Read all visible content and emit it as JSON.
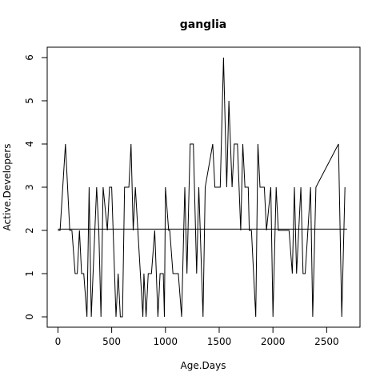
{
  "chart_data": {
    "type": "line",
    "title": "ganglia",
    "xlabel": "Age.Days",
    "ylabel": "Active.Developers",
    "xlim": [
      -100,
      2810
    ],
    "ylim": [
      -0.24,
      6.24
    ],
    "xticks": [
      0,
      500,
      1000,
      1500,
      2000,
      2500
    ],
    "yticks": [
      0,
      1,
      2,
      3,
      4,
      5,
      6
    ],
    "series": [
      {
        "x": [
          0,
          20,
          70,
          110,
          130,
          160,
          180,
          200,
          220,
          240,
          270,
          290,
          310,
          360,
          380,
          400,
          420,
          460,
          480,
          500,
          540,
          560,
          580,
          600,
          620,
          660,
          680,
          700,
          720,
          790,
          800,
          820,
          840,
          870,
          900,
          930,
          950,
          980,
          990,
          1000,
          1030,
          1040,
          1070,
          1120,
          1150,
          1180,
          1200,
          1230,
          1260,
          1290,
          1310,
          1350,
          1370,
          1440,
          1460,
          1510,
          1540,
          1570,
          1590,
          1620,
          1640,
          1670,
          1700,
          1720,
          1740,
          1770,
          1780,
          1800,
          1840,
          1860,
          1880,
          1920,
          1940,
          1980,
          2000,
          2030,
          2050,
          2060,
          2080,
          2100,
          2150,
          2180,
          2200,
          2220,
          2260,
          2280,
          2300,
          2350,
          2370,
          2400,
          2610,
          2640,
          2670
        ],
        "values": [
          2,
          2,
          4,
          2,
          2,
          1,
          1,
          2,
          1,
          1,
          0,
          3,
          0,
          3,
          2,
          0,
          3,
          2,
          3,
          3,
          0,
          1,
          0,
          0,
          3,
          3,
          4,
          2,
          3,
          0,
          1,
          0,
          1,
          1,
          2,
          0,
          1,
          1,
          0,
          3,
          2,
          2,
          1,
          1,
          0,
          3,
          1,
          4,
          4,
          1,
          3,
          0,
          3,
          4,
          3,
          3,
          6,
          3,
          5,
          3,
          4,
          4,
          2,
          4,
          3,
          3,
          2,
          2,
          0,
          4,
          3,
          3,
          2,
          3,
          0,
          3,
          2,
          2,
          2,
          2,
          2,
          1,
          3,
          1,
          3,
          1,
          1,
          3,
          0,
          3,
          4,
          0,
          3
        ]
      }
    ],
    "reference_line": {
      "x": [
        0,
        2690
      ],
      "y": 2.03
    }
  }
}
